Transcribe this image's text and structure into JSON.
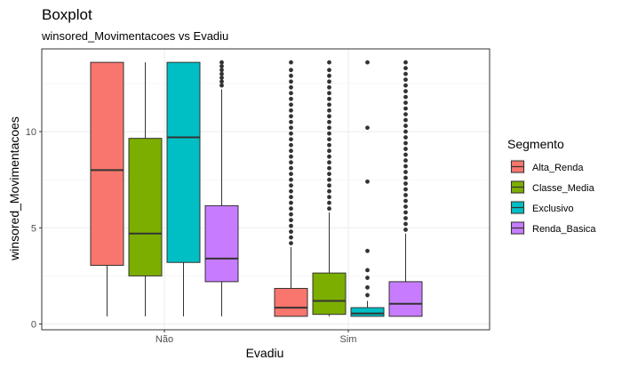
{
  "chart_data": {
    "type": "boxplot",
    "title": "Boxplot",
    "subtitle": "winsored_Movimentacoes vs Evadiu",
    "xlabel": "Evadiu",
    "ylabel": "winsored_Movimentacoes",
    "categories": [
      "Não",
      "Sim"
    ],
    "y_ticks": [
      0,
      5,
      10
    ],
    "ylim": [
      -0.3,
      14.3
    ],
    "grid": true,
    "legend": {
      "title": "Segmento",
      "position": "right"
    },
    "series": [
      {
        "name": "Alta_Renda",
        "color": "#F8766D",
        "boxes": [
          {
            "category": "Não",
            "min": 0.4,
            "q1": 3.05,
            "median": 8.0,
            "q3": 13.6,
            "max": 13.6,
            "outliers": []
          },
          {
            "category": "Sim",
            "min": 0.4,
            "q1": 0.4,
            "median": 0.85,
            "q3": 1.85,
            "max": 4.0,
            "outliers": [
              4.2,
              4.5,
              4.8,
              5.1,
              5.4,
              5.7,
              6.0,
              6.3,
              6.6,
              6.9,
              7.2,
              7.5,
              7.8,
              8.1,
              8.4,
              8.7,
              9.0,
              9.3,
              9.6,
              9.9,
              10.2,
              10.5,
              10.8,
              11.1,
              11.4,
              11.7,
              12.0,
              12.3,
              12.6,
              12.9,
              13.2,
              13.6
            ]
          }
        ]
      },
      {
        "name": "Classe_Media",
        "color": "#7CAE00",
        "boxes": [
          {
            "category": "Não",
            "min": 0.4,
            "q1": 2.5,
            "median": 4.7,
            "q3": 9.65,
            "max": 13.6,
            "outliers": []
          },
          {
            "category": "Sim",
            "min": 0.4,
            "q1": 0.5,
            "median": 1.2,
            "q3": 2.65,
            "max": 5.8,
            "outliers": [
              6.0,
              6.3,
              6.6,
              6.9,
              7.2,
              7.5,
              7.8,
              8.1,
              8.4,
              8.7,
              9.0,
              9.3,
              9.6,
              9.9,
              10.2,
              10.5,
              10.8,
              11.1,
              11.4,
              11.7,
              12.0,
              12.3,
              12.6,
              12.9,
              13.2,
              13.6
            ]
          }
        ]
      },
      {
        "name": "Exclusivo",
        "color": "#00BFC4",
        "boxes": [
          {
            "category": "Não",
            "min": 0.4,
            "q1": 3.2,
            "median": 9.7,
            "q3": 13.6,
            "max": 13.6,
            "outliers": []
          },
          {
            "category": "Sim",
            "min": 0.4,
            "q1": 0.4,
            "median": 0.55,
            "q3": 0.85,
            "max": 1.2,
            "outliers": [
              1.5,
              1.9,
              2.4,
              2.8,
              3.8,
              7.4,
              10.2,
              13.6
            ]
          }
        ]
      },
      {
        "name": "Renda_Basica",
        "color": "#C77CFF",
        "boxes": [
          {
            "category": "Não",
            "min": 0.4,
            "q1": 2.2,
            "median": 3.4,
            "q3": 6.15,
            "max": 12.2,
            "outliers": [
              12.4,
              12.6,
              12.8,
              13.0,
              13.2,
              13.4,
              13.6
            ]
          },
          {
            "category": "Sim",
            "min": 0.4,
            "q1": 0.4,
            "median": 1.05,
            "q3": 2.2,
            "max": 4.7,
            "outliers": [
              4.9,
              5.2,
              5.5,
              5.8,
              6.1,
              6.4,
              6.7,
              7.0,
              7.3,
              7.6,
              7.9,
              8.2,
              8.5,
              8.8,
              9.1,
              9.4,
              9.7,
              10.0,
              10.3,
              10.6,
              10.9,
              11.2,
              11.5,
              11.8,
              12.1,
              12.4,
              12.7,
              13.0,
              13.3,
              13.6
            ]
          }
        ]
      }
    ]
  }
}
